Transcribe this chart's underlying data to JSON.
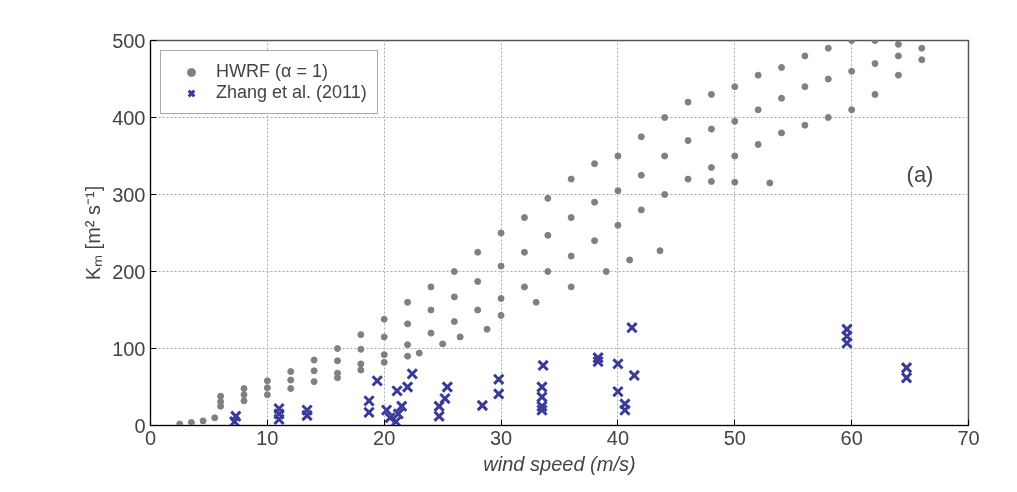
{
  "chart_data": {
    "type": "scatter",
    "xlabel": "wind speed (m/s)",
    "ylabel": "Kₘ [m² s⁻¹]",
    "xlim": [
      0,
      70
    ],
    "ylim": [
      0,
      500
    ],
    "xticks": [
      0,
      10,
      20,
      30,
      40,
      50,
      60,
      70
    ],
    "yticks": [
      0,
      100,
      200,
      300,
      400,
      500
    ],
    "grid": true,
    "legend": "top left",
    "annotations": [
      "(a)"
    ],
    "series": [
      {
        "name": "HWRF (α = 1)",
        "color": "#808080",
        "marker": "circle",
        "x": [
          2.5,
          3.5,
          4.5,
          5.5,
          6,
          6,
          6,
          8,
          8,
          8,
          10,
          10,
          10,
          12,
          12,
          12,
          14,
          14,
          14,
          16,
          16,
          16,
          18,
          18,
          18,
          20,
          20,
          20,
          22,
          22,
          22,
          24,
          24,
          24,
          26,
          26,
          26,
          28,
          28,
          28,
          30,
          30,
          30,
          32,
          32,
          32,
          34,
          34,
          34,
          36,
          36,
          36,
          38,
          38,
          38,
          40,
          40,
          40,
          42,
          42,
          42,
          44,
          44,
          44,
          46,
          46,
          46,
          48,
          48,
          48,
          50,
          50,
          50,
          52,
          52,
          52,
          54,
          54,
          54,
          56,
          56,
          56,
          58,
          58,
          58,
          60,
          60,
          60,
          62,
          62,
          62,
          64,
          64,
          64,
          66,
          66,
          16,
          18,
          20,
          22,
          23,
          25,
          26.5,
          28.8,
          30,
          33,
          36,
          39,
          41,
          43.6,
          48,
          50,
          53
        ],
        "values": [
          2,
          4,
          6,
          10,
          25,
          31,
          38,
          32,
          40,
          48,
          40,
          49,
          58,
          48,
          59,
          70,
          57,
          71,
          85,
          68,
          84,
          100,
          80,
          99,
          118,
          92,
          115,
          138,
          105,
          132,
          160,
          120,
          150,
          180,
          135,
          167,
          200,
          150,
          187,
          225,
          165,
          207,
          250,
          180,
          225,
          270,
          200,
          247,
          295,
          220,
          270,
          320,
          240,
          290,
          340,
          260,
          305,
          350,
          280,
          325,
          375,
          300,
          350,
          400,
          320,
          370,
          420,
          335,
          385,
          430,
          350,
          395,
          440,
          365,
          410,
          455,
          380,
          425,
          465,
          390,
          440,
          480,
          400,
          450,
          490,
          410,
          460,
          500,
          430,
          470,
          500,
          455,
          480,
          495,
          475,
          490,
          62,
          72,
          82,
          90,
          94,
          106,
          115,
          125,
          143,
          160,
          180,
          200,
          215,
          227,
          317,
          316,
          315
        ]
      },
      {
        "name": "Zhang et al. (2011)",
        "color": "#3a3a9a",
        "marker": "cross",
        "x": [
          7.2,
          7.3,
          11,
          11,
          11,
          13.4,
          13.4,
          18.7,
          18.7,
          19.4,
          20.2,
          20.5,
          21,
          21.2,
          21.5,
          21.1,
          22.4,
          22,
          24.7,
          24.7,
          25.4,
          25.2,
          28.4,
          29.8,
          29.8,
          33.6,
          33.5,
          33.5,
          33.5,
          33.5,
          38.3,
          38.3,
          41.2,
          40,
          41.4,
          40,
          40.6,
          40.6,
          59.6,
          59.6,
          59.6,
          64.7,
          64.7
        ],
        "values": [
          5,
          12,
          8,
          15,
          22,
          13,
          20,
          17,
          32,
          58,
          20,
          10,
          5,
          15,
          25,
          45,
          67,
          50,
          12,
          25,
          50,
          35,
          26,
          60,
          41,
          78,
          50,
          37,
          25,
          20,
          88,
          83,
          127,
          80,
          65,
          44,
          28,
          20,
          125,
          116,
          107,
          75,
          62
        ]
      }
    ]
  }
}
